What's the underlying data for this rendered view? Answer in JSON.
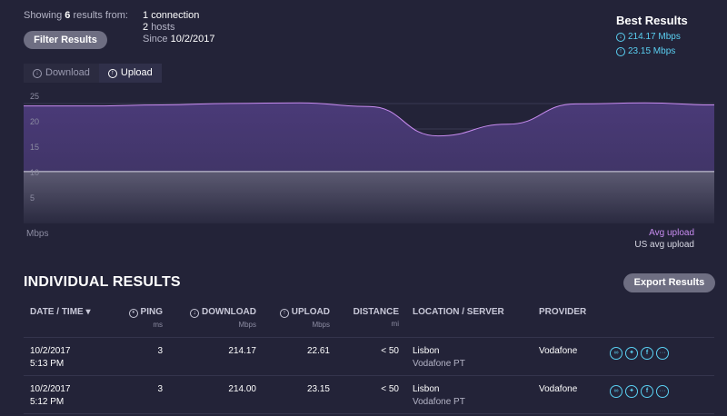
{
  "summary": {
    "showing_prefix": "Showing",
    "count": "6",
    "showing_suffix": "results from:",
    "filter_label": "Filter Results",
    "connections_count": "1",
    "connections_label": "connection",
    "hosts_count": "2",
    "hosts_label": "hosts",
    "since_prefix": "Since",
    "since_date": "10/2/2017"
  },
  "best": {
    "title": "Best Results",
    "download": "214.17 Mbps",
    "upload": "23.15 Mbps"
  },
  "tabs": [
    {
      "label": "Download",
      "active": false
    },
    {
      "label": "Upload",
      "active": true
    }
  ],
  "chart_data": {
    "type": "area",
    "ylabel": "Mbps",
    "yticks": [
      "25",
      "20",
      "15",
      "10",
      "5"
    ],
    "ylim": [
      0,
      25
    ],
    "series": [
      {
        "name": "Avg upload",
        "color": "#c88cf0",
        "values": [
          23.1,
          23.1,
          23.3,
          23.6,
          23.7,
          23.0,
          17.2,
          19.5,
          23.5,
          23.7,
          23.3
        ]
      },
      {
        "name": "US avg upload",
        "color": "#ffffff",
        "values": [
          10.2,
          10.2,
          10.2,
          10.2,
          10.2,
          10.2,
          10.2,
          10.2,
          10.2,
          10.2,
          10.2
        ]
      }
    ],
    "legend": [
      "Avg upload",
      "US avg upload"
    ],
    "grid": true
  },
  "results": {
    "title": "INDIVIDUAL RESULTS",
    "export_label": "Export Results",
    "columns": {
      "date": "DATE / TIME",
      "ping": "PING",
      "ping_unit": "ms",
      "download": "DOWNLOAD",
      "download_unit": "Mbps",
      "upload": "UPLOAD",
      "upload_unit": "Mbps",
      "distance": "DISTANCE",
      "distance_unit": "mi",
      "location": "LOCATION / SERVER",
      "provider": "PROVIDER"
    },
    "rows": [
      {
        "date": "10/2/2017",
        "time": "5:13 PM",
        "ping": "3",
        "download": "214.17",
        "upload": "22.61",
        "distance": "< 50",
        "location": "Lisbon",
        "server": "Vodafone PT",
        "provider": "Vodafone"
      },
      {
        "date": "10/2/2017",
        "time": "5:12 PM",
        "ping": "3",
        "download": "214.00",
        "upload": "23.15",
        "distance": "< 50",
        "location": "Lisbon",
        "server": "Vodafone PT",
        "provider": "Vodafone"
      }
    ],
    "share_icons": [
      "link-icon",
      "twitter-icon",
      "facebook-icon",
      "more-icon"
    ]
  }
}
